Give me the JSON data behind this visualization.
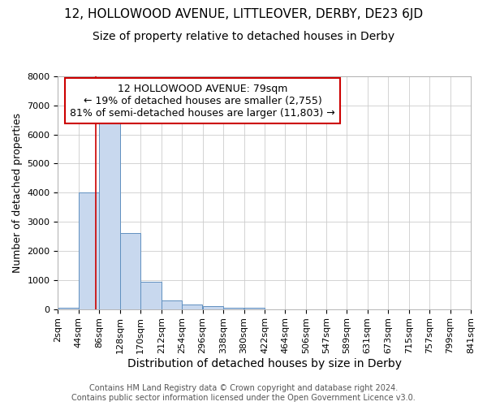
{
  "title": "12, HOLLOWOOD AVENUE, LITTLEOVER, DERBY, DE23 6JD",
  "subtitle": "Size of property relative to detached houses in Derby",
  "xlabel": "Distribution of detached houses by size in Derby",
  "ylabel": "Number of detached properties",
  "footer_line1": "Contains HM Land Registry data © Crown copyright and database right 2024.",
  "footer_line2": "Contains public sector information licensed under the Open Government Licence v3.0.",
  "bins": [
    2,
    44,
    86,
    128,
    170,
    212,
    254,
    296,
    338,
    380,
    422,
    464,
    506,
    547,
    589,
    631,
    673,
    715,
    757,
    799,
    841
  ],
  "bar_heights": [
    50,
    4000,
    6600,
    2600,
    950,
    300,
    150,
    100,
    50,
    50,
    0,
    0,
    0,
    0,
    0,
    0,
    0,
    0,
    0,
    0
  ],
  "bar_color": "#c8d8ee",
  "bar_edge_color": "#6090c0",
  "property_size": 79,
  "property_line_color": "#cc0000",
  "annotation_line1": "12 HOLLOWOOD AVENUE: 79sqm",
  "annotation_line2": "← 19% of detached houses are smaller (2,755)",
  "annotation_line3": "81% of semi-detached houses are larger (11,803) →",
  "annotation_box_color": "#cc0000",
  "ylim": [
    0,
    8000
  ],
  "bg_color": "#ffffff",
  "plot_bg_color": "#ffffff",
  "grid_color": "#cccccc",
  "title_fontsize": 11,
  "subtitle_fontsize": 10,
  "xlabel_fontsize": 10,
  "ylabel_fontsize": 9,
  "tick_fontsize": 8,
  "annotation_fontsize": 9,
  "footer_fontsize": 7
}
